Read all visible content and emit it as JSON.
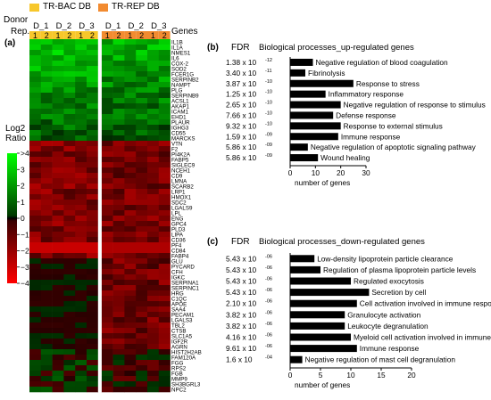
{
  "legend": [
    {
      "label": "TR-BAC DB",
      "color": "#f7c72b"
    },
    {
      "label": "TR-REP DB",
      "color": "#f28b30"
    }
  ],
  "panel_a": {
    "panel_label": "(a)",
    "donor_label": "Donor",
    "rep_label": "Rep.",
    "genes_header": "Genes",
    "donors": [
      "D_1",
      "D_2",
      "D_3",
      "D_1",
      "D_2",
      "D_3"
    ],
    "reps": [
      "1",
      "2",
      "1",
      "2",
      "1",
      "2",
      "1",
      "2",
      "1",
      "2",
      "1",
      "2"
    ],
    "scale_title": "Log2\nRatio",
    "scale_ticks": [
      ">4",
      "3",
      "2",
      "1",
      "0",
      "−1",
      "−2",
      "−3",
      "−4"
    ],
    "genes": [
      "IL1B",
      "IL1A",
      "NMES1",
      "IL6",
      "COX-2",
      "SOD2",
      "FCER1G",
      "SERPINB2",
      "NAMPT",
      "PLG",
      "SERPINB9",
      "ACSL1",
      "AKAP1",
      "ICAM1",
      "EHD1",
      "PLAUR",
      "IGHG3",
      "CD55",
      "MARCKS",
      "VTN",
      "F2",
      "PI4K2A",
      "FABP5",
      "SIGLEC9",
      "NCEH1",
      "CD9",
      "LMNA",
      "SCARB2",
      "LRP1",
      "HMOX1",
      "SDC2",
      "LGALS9",
      "LPL",
      "ENG",
      "GPC4",
      "PLD3",
      "LIPA",
      "CD36",
      "PF4",
      "CD84",
      "FABP4",
      "GLU",
      "PYCARD",
      "CFH",
      "IGKC",
      "SERPINA1",
      "SERPINC1",
      "HRG",
      "C1QC",
      "APOE",
      "SAA4",
      "PECAM1",
      "LGALS3",
      "TBL2",
      "CTSB",
      "SLC1A5",
      "IGF2R",
      "AGRN",
      "HIST2H2AB",
      "FAM120A",
      "FGG",
      "RPS2",
      "FGB",
      "MMP9",
      "SH3BGRL3",
      "NPC2"
    ]
  },
  "chart_data": [
    {
      "type": "bar",
      "panel_label": "(b)",
      "fdr_header": "FDR",
      "title": "Biological processes_up-regulated genes",
      "categories": [
        "Negative regulation of blood coagulation",
        "Fibrinolysis",
        "Response to stress",
        "Inflammatory response",
        "Negative regulation of response to stimulus",
        "Defense response",
        "Response to external stimulus",
        "Immune response",
        "Negative regulation of apoptotic signaling pathway",
        "Wound healing"
      ],
      "fdr_mantissa": [
        "1.38 x 10",
        "3.40 x 10",
        "3.87 x 10",
        "1.25 x 10",
        "2.65 x 10",
        "7.66 x 10",
        "9.32 x 10",
        "1.59 x 10",
        "5.86 x 10",
        "5.86 x 10"
      ],
      "fdr_exponent": [
        "-12",
        "-11",
        "-10",
        "-10",
        "-10",
        "-10",
        "-10",
        "-09",
        "-09",
        "-09"
      ],
      "values": [
        9,
        6,
        25,
        14,
        20,
        17,
        20,
        19,
        7,
        11
      ],
      "xlabel": "number of genes",
      "xticks": [
        "0",
        "10",
        "20",
        "30"
      ],
      "xlim": [
        0,
        30
      ]
    },
    {
      "type": "bar",
      "panel_label": "(c)",
      "fdr_header": "FDR",
      "title": "Biological processes_down-regulated genes",
      "categories": [
        "Low-density lipoprotein particle clearance",
        "Regulation of plasma lipoprotein particle levels",
        "Regulated exocytosis",
        "Secretion by cell",
        "Cell activation involved in immune response",
        "Granulocyte activation",
        "Leukocyte degranulation",
        "Myeloid cell activation involved in immune response",
        "Immune response",
        "Negative regulation of mast cell degranulation"
      ],
      "fdr_mantissa": [
        "5.43 x 10",
        "5.43 x 10",
        "5.43 x 10",
        "5.43 x 10",
        "2.10 x 10",
        "3.82 x 10",
        "3.82 x 10",
        "4.16 x 10",
        "9.61 x 10",
        "1.6 x 10"
      ],
      "fdr_exponent": [
        "-06",
        "-06",
        "-06",
        "-06",
        "-06",
        "-06",
        "-06",
        "-06",
        "-06",
        "-04"
      ],
      "values": [
        4,
        5,
        10,
        13,
        11,
        9,
        9,
        10,
        11,
        2
      ],
      "xlabel": "number of genes",
      "xticks": [
        "0",
        "5",
        "10",
        "15",
        "20"
      ],
      "xlim": [
        0,
        20
      ]
    }
  ]
}
